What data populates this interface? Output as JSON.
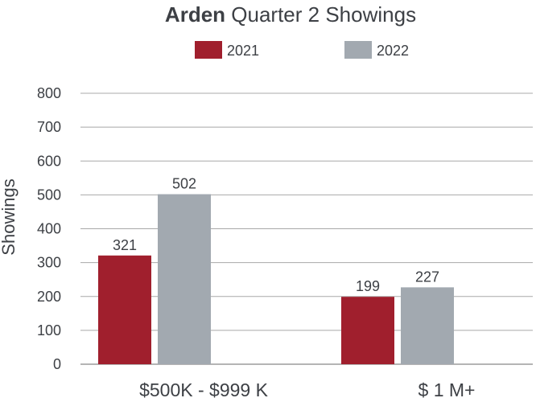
{
  "chart_data": {
    "type": "bar",
    "title": {
      "bold": "Arden",
      "rest": "Quarter 2 Showings"
    },
    "xlabel": "",
    "ylabel": "Showings",
    "ylim": [
      0,
      800
    ],
    "yticks": [
      0,
      100,
      200,
      300,
      400,
      500,
      600,
      700,
      800
    ],
    "grid": true,
    "legend_position": "top-center",
    "categories": [
      "$500K - $999 K",
      "$ 1 M+"
    ],
    "series": [
      {
        "name": "2021",
        "color": "#a01f2d",
        "values": [
          321,
          199
        ]
      },
      {
        "name": "2022",
        "color": "#a2a9b0",
        "values": [
          502,
          227
        ]
      }
    ]
  }
}
